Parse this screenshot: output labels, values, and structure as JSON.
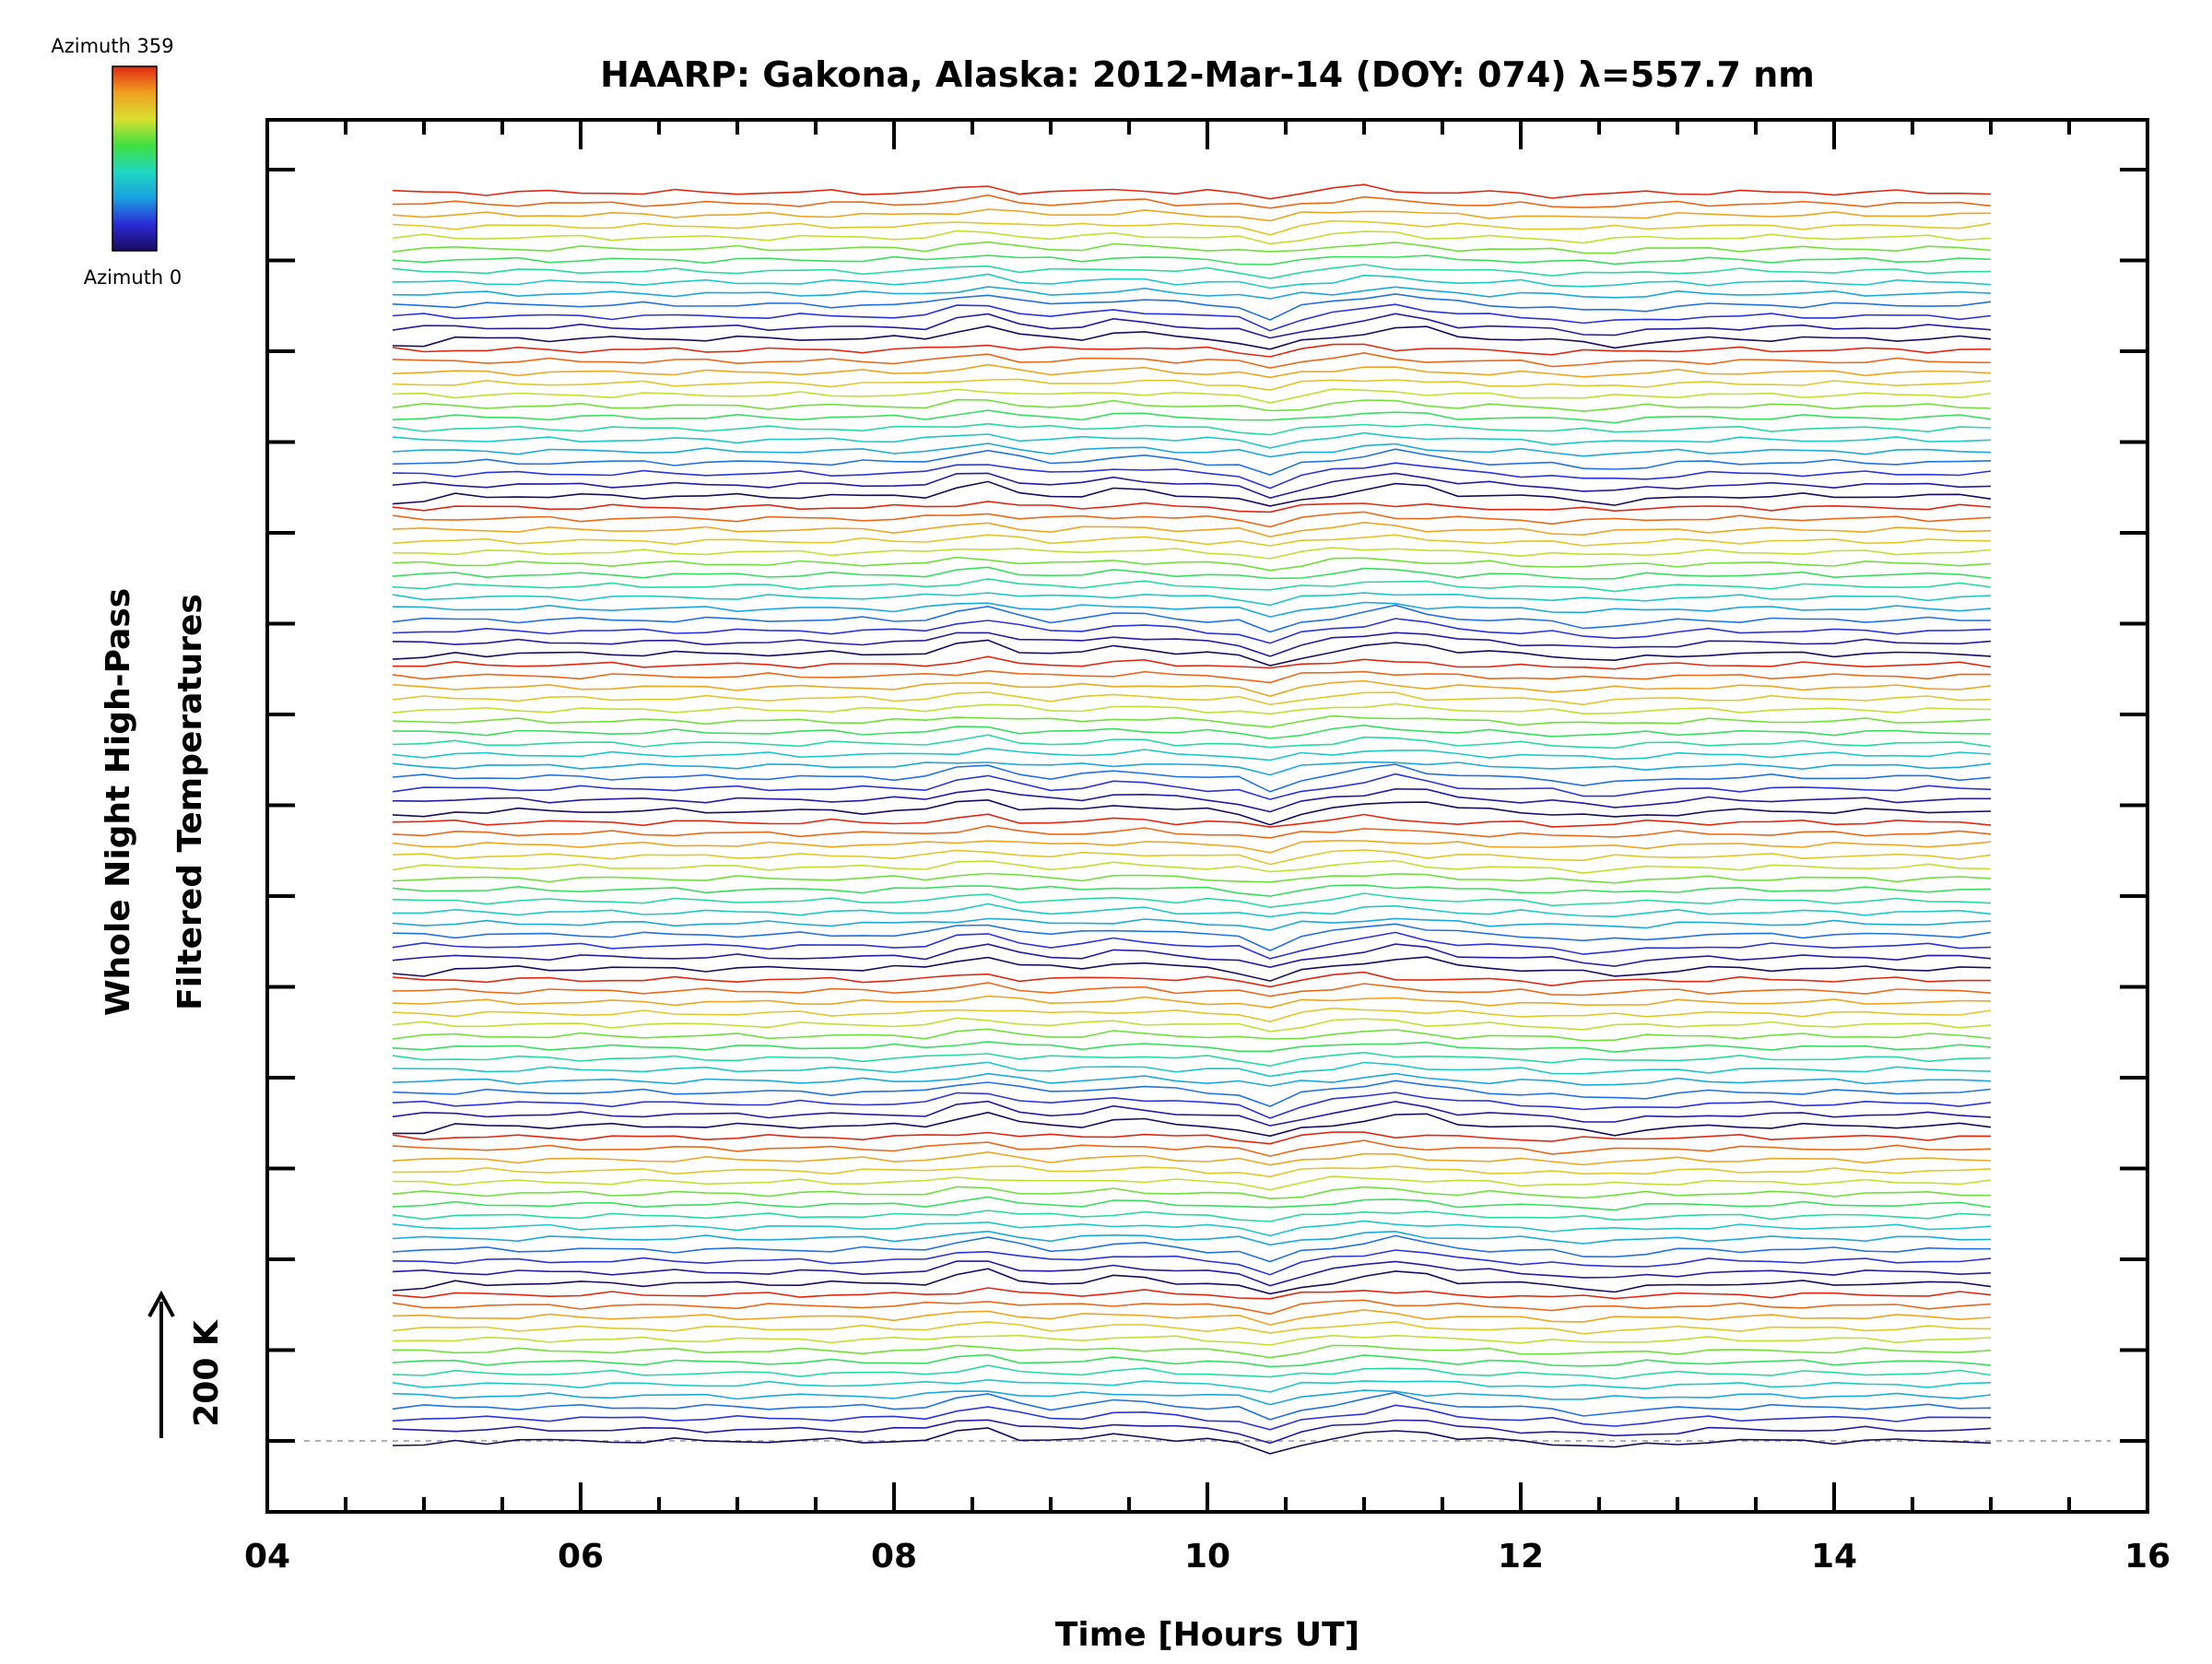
{
  "chart_data": {
    "type": "line",
    "title": "HAARP: Gakona,  Alaska: 2012-Mar-14 (DOY: 074) λ=557.7 nm",
    "xlabel": "Time [Hours UT]",
    "ylabel_line1": "Whole Night High-Pass",
    "ylabel_line2": "Filtered Temperatures",
    "scale_label": "200 K",
    "xlim": [
      4,
      16
    ],
    "x_ticks": [
      "04",
      "06",
      "08",
      "10",
      "12",
      "14",
      "16"
    ],
    "colorbar": {
      "label_top": "Azimuth 359",
      "label_bottom": "Azimuth 0",
      "colors": [
        "#1a0a5e",
        "#2b2bd6",
        "#1aa0e0",
        "#20d8c0",
        "#40e040",
        "#d8e030",
        "#f0a020",
        "#e02810"
      ]
    },
    "series_count": 112,
    "groups": 8,
    "lines_per_group": 14,
    "time_range_hours": [
      4.8,
      15.0
    ],
    "baseline": 0,
    "waves": [
      {
        "center": 8.55,
        "width": 0.22,
        "amp": 1.0
      },
      {
        "center": 11.25,
        "width": 0.3,
        "amp": 0.9
      },
      {
        "center": 10.4,
        "width": 0.15,
        "amp": -1.0
      },
      {
        "center": 12.6,
        "width": 0.35,
        "amp": -0.5
      },
      {
        "center": 9.5,
        "width": 0.25,
        "amp": 0.5
      }
    ]
  }
}
